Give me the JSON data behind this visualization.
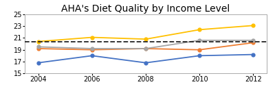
{
  "title": "AHA's Diet Quality by Income Level",
  "years": [
    2004,
    2006,
    2008,
    2010,
    2012
  ],
  "series": {
    "Low Income": {
      "values": [
        16.8,
        18.0,
        16.8,
        18.0,
        18.2
      ],
      "color": "#4472C4",
      "marker": "o",
      "linestyle": "-"
    },
    "Low Middle Class": {
      "values": [
        19.2,
        19.0,
        19.2,
        19.0,
        20.2
      ],
      "color": "#ED7D31",
      "marker": "o",
      "linestyle": "-"
    },
    "Upper Middle Class": {
      "values": [
        19.5,
        19.2,
        19.2,
        20.6,
        20.6
      ],
      "color": "#A5A5A5",
      "marker": "o",
      "linestyle": "-"
    },
    "Upper Class": {
      "values": [
        20.4,
        21.1,
        20.8,
        22.4,
        23.1
      ],
      "color": "#FFC000",
      "marker": "o",
      "linestyle": "-"
    }
  },
  "dashed_line_y": 20.3,
  "dashed_line_color": "#222222",
  "ylim": [
    15,
    25
  ],
  "yticks": [
    15,
    17,
    19,
    21,
    23,
    25
  ],
  "xlim_min": 2003.5,
  "xlim_max": 2012.5,
  "xticks": [
    2004,
    2006,
    2008,
    2010,
    2012
  ],
  "background_color": "#FFFFFF",
  "title_fontsize": 10,
  "legend_fontsize": 6.5,
  "tick_fontsize": 7,
  "linewidth": 1.3,
  "markersize": 3.5
}
